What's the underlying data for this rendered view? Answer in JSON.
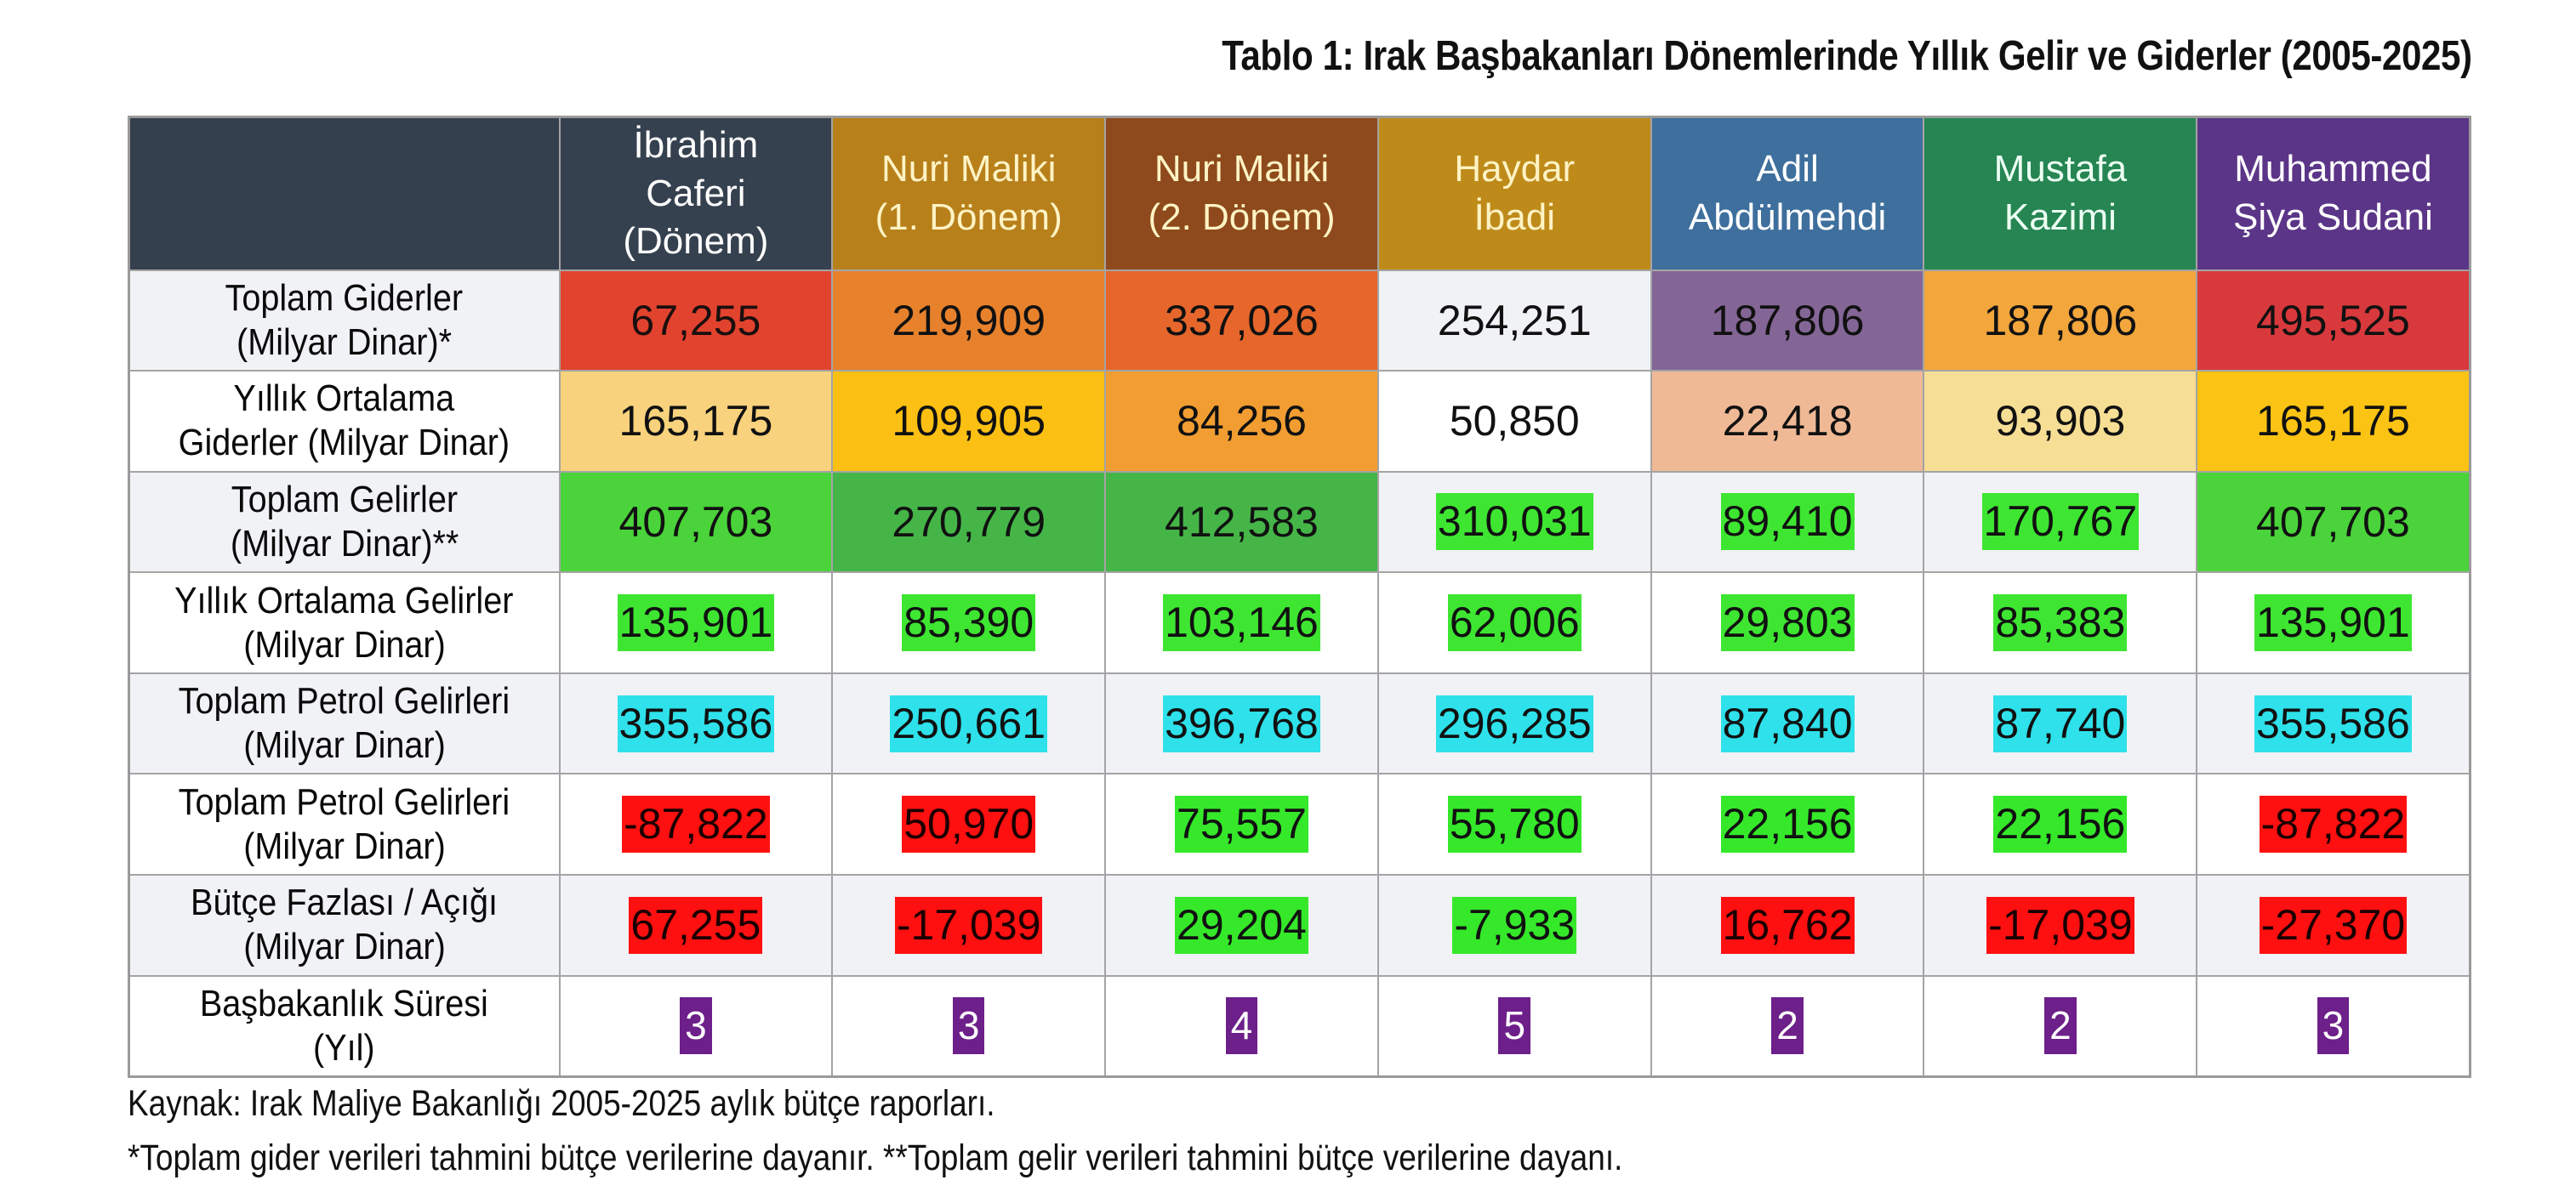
{
  "title": "Tablo 1: Irak Başbakanları Dönemlerinde Yıllık Gelir ve Giderler (2005-2025)",
  "table": {
    "corner_color": "#35404e",
    "columns": [
      {
        "label": "İbrahim Caferi (Dönem)",
        "lines": [
          "İbrahim",
          "Caferi",
          "(Dönem)"
        ],
        "bg": "#36414f",
        "fg": "#ffffff"
      },
      {
        "label": "Nuri Maliki (1. Dönem)",
        "lines": [
          "Nuri Maliki",
          "(1. Dönem)"
        ],
        "bg": "#b7801b",
        "fg": "#fff3c4"
      },
      {
        "label": "Nuri Maliki (2. Dönem)",
        "lines": [
          "Nuri Maliki",
          "(2. Dönem)"
        ],
        "bg": "#8e4a1c",
        "fg": "#fff3c4"
      },
      {
        "label": "Haydar İbadi",
        "lines": [
          "Haydar",
          "İbadi"
        ],
        "bg": "#be8b1b",
        "fg": "#fff3c4"
      },
      {
        "label": "Adil Abdülmehdi",
        "lines": [
          "Adil",
          "Abdülmehdi"
        ],
        "bg": "#3e6f9d",
        "fg": "#ffffff"
      },
      {
        "label": "Mustafa Kazimi",
        "lines": [
          "Mustafa",
          "Kazimi"
        ],
        "bg": "#268553",
        "fg": "#ecfff2"
      },
      {
        "label": "Muhammed Şiya Sudani",
        "lines": [
          "Muhammed",
          "Şiya Sudani"
        ],
        "bg": "#5b3587",
        "fg": "#ffffff"
      }
    ],
    "rows": [
      {
        "label_lines": [
          "Toplam Giderler",
          "(Milyar Dinar)*"
        ],
        "style": "fill",
        "cells": [
          {
            "value": "67,255",
            "bg": "#e2432e",
            "fg": "#1a0f0f"
          },
          {
            "value": "219,909",
            "bg": "#e7812c",
            "fg": "#111111"
          },
          {
            "value": "337,026",
            "bg": "#e6662b",
            "fg": "#111111"
          },
          {
            "value": "254,251",
            "bg": "",
            "fg": "#111111"
          },
          {
            "value": "187,806",
            "bg": "#836696",
            "fg": "#111111"
          },
          {
            "value": "187,806",
            "bg": "#f2a63c",
            "fg": "#111111"
          },
          {
            "value": "495,525",
            "bg": "#d8393c",
            "fg": "#111111"
          }
        ]
      },
      {
        "label_lines": [
          "Yıllık Ortalama",
          "Giderler (Milyar Dinar)"
        ],
        "style": "fill",
        "cells": [
          {
            "value": "165,175",
            "bg": "#f8d27c",
            "fg": "#111111"
          },
          {
            "value": "109,905",
            "bg": "#fbc013",
            "fg": "#111111"
          },
          {
            "value": "84,256",
            "bg": "#f19d31",
            "fg": "#111111"
          },
          {
            "value": "50,850",
            "bg": "",
            "fg": "#111111"
          },
          {
            "value": "22,418",
            "bg": "#f0b996",
            "fg": "#111111"
          },
          {
            "value": "93,903",
            "bg": "#f6de95",
            "fg": "#111111"
          },
          {
            "value": "165,175",
            "bg": "#fbc313",
            "fg": "#111111"
          }
        ]
      },
      {
        "label_lines": [
          "Toplam Gelirler",
          "(Milyar Dinar)**"
        ],
        "style": "mixed",
        "cells": [
          {
            "value": "407,703",
            "bg": "#4ad33a",
            "fg": "#111111",
            "mode": "fill"
          },
          {
            "value": "270,779",
            "bg": "#45b548",
            "fg": "#111111",
            "mode": "fill"
          },
          {
            "value": "412,583",
            "bg": "#45b548",
            "fg": "#111111",
            "mode": "fill"
          },
          {
            "value": "310,031",
            "bg": "#3ee632",
            "fg": "#111111",
            "mode": "chip"
          },
          {
            "value": "89,410",
            "bg": "#3ee632",
            "fg": "#111111",
            "mode": "chip"
          },
          {
            "value": "170,767",
            "bg": "#3ee632",
            "fg": "#111111",
            "mode": "chip"
          },
          {
            "value": "407,703",
            "bg": "#4ad33a",
            "fg": "#111111",
            "mode": "fill"
          }
        ]
      },
      {
        "label_lines": [
          "Yıllık Ortalama Gelirler",
          "(Milyar Dinar)"
        ],
        "style": "chip",
        "cells": [
          {
            "value": "135,901",
            "bg": "#3ee632",
            "fg": "#111111"
          },
          {
            "value": "85,390",
            "bg": "#3ee632",
            "fg": "#111111"
          },
          {
            "value": "103,146",
            "bg": "#3ee632",
            "fg": "#111111"
          },
          {
            "value": "62,006",
            "bg": "#3ee632",
            "fg": "#111111"
          },
          {
            "value": "29,803",
            "bg": "#3ee632",
            "fg": "#111111"
          },
          {
            "value": "85,383",
            "bg": "#3ee632",
            "fg": "#111111"
          },
          {
            "value": "135,901",
            "bg": "#3ee632",
            "fg": "#111111"
          }
        ]
      },
      {
        "label_lines": [
          "Toplam Petrol Gelirleri",
          "(Milyar Dinar)"
        ],
        "style": "chip",
        "cells": [
          {
            "value": "355,586",
            "bg": "#2ee1ea",
            "fg": "#111111"
          },
          {
            "value": "250,661",
            "bg": "#2ee1ea",
            "fg": "#111111"
          },
          {
            "value": "396,768",
            "bg": "#2ee1ea",
            "fg": "#111111"
          },
          {
            "value": "296,285",
            "bg": "#2ee1ea",
            "fg": "#111111"
          },
          {
            "value": "87,840",
            "bg": "#2ee1ea",
            "fg": "#111111"
          },
          {
            "value": "87,740",
            "bg": "#2ee1ea",
            "fg": "#111111"
          },
          {
            "value": "355,586",
            "bg": "#2ee1ea",
            "fg": "#111111"
          }
        ]
      },
      {
        "label_lines": [
          "Toplam Petrol Gelirleri",
          "(Milyar Dinar)"
        ],
        "style": "chip",
        "cells": [
          {
            "value": "-87,822",
            "bg": "#ff1010",
            "fg": "#1a0000"
          },
          {
            "value": "50,970",
            "bg": "#ff1010",
            "fg": "#1a0000"
          },
          {
            "value": "75,557",
            "bg": "#35e82a",
            "fg": "#111111"
          },
          {
            "value": "55,780",
            "bg": "#35e82a",
            "fg": "#111111"
          },
          {
            "value": "22,156",
            "bg": "#35e82a",
            "fg": "#111111"
          },
          {
            "value": "22,156",
            "bg": "#35e82a",
            "fg": "#111111"
          },
          {
            "value": "-87,822",
            "bg": "#ff1010",
            "fg": "#1a0000"
          }
        ]
      },
      {
        "label_lines": [
          "Bütçe Fazlası / Açığı",
          "(Milyar Dinar)"
        ],
        "style": "chip",
        "cells": [
          {
            "value": "67,255",
            "bg": "#ff1010",
            "fg": "#1a0000"
          },
          {
            "value": "-17,039",
            "bg": "#ff1010",
            "fg": "#1a0000"
          },
          {
            "value": "29,204",
            "bg": "#35e82a",
            "fg": "#111111"
          },
          {
            "value": "-7,933",
            "bg": "#35e82a",
            "fg": "#111111"
          },
          {
            "value": "16,762",
            "bg": "#ff1010",
            "fg": "#1a0000"
          },
          {
            "value": "-17,039",
            "bg": "#ff1010",
            "fg": "#1a0000"
          },
          {
            "value": "-27,370",
            "bg": "#ff1010",
            "fg": "#1a0000"
          }
        ]
      },
      {
        "label_lines": [
          "Başbakanlık Süresi",
          "(Yıl)"
        ],
        "style": "chip",
        "cells": [
          {
            "value": "3",
            "bg": "#6d1f8a",
            "fg": "#ffffff"
          },
          {
            "value": "3",
            "bg": "#6d1f8a",
            "fg": "#ffffff"
          },
          {
            "value": "4",
            "bg": "#6d1f8a",
            "fg": "#ffffff"
          },
          {
            "value": "5",
            "bg": "#6d1f8a",
            "fg": "#ffffff"
          },
          {
            "value": "2",
            "bg": "#6d1f8a",
            "fg": "#ffffff"
          },
          {
            "value": "2",
            "bg": "#6d1f8a",
            "fg": "#ffffff"
          },
          {
            "value": "3",
            "bg": "#6d1f8a",
            "fg": "#ffffff"
          }
        ]
      }
    ]
  },
  "footnotes": {
    "source": "Kaynak: Irak Maliye Bakanlığı 2005-2025 aylık bütçe raporları.",
    "note": "*Toplam gider verileri tahmini bütçe verilerine dayanır. **Toplam gelir verileri tahmini bütçe verilerine dayanı."
  },
  "chart_data": {
    "type": "table",
    "title": "Tablo 1: Irak Başbakanları Dönemlerinde Yıllık Gelir ve Giderler (2005-2025)",
    "columns": [
      "İbrahim Caferi (Dönem)",
      "Nuri Maliki (1. Dönem)",
      "Nuri Maliki (2. Dönem)",
      "Haydar İbadi",
      "Adil Abdülmehdi",
      "Mustafa Kazimi",
      "Muhammed Şiya Sudani"
    ],
    "rows": [
      {
        "name": "Toplam Giderler (Milyar Dinar)*",
        "values": [
          67255,
          219909,
          337026,
          254251,
          187806,
          187806,
          495525
        ]
      },
      {
        "name": "Yıllık Ortalama Giderler (Milyar Dinar)",
        "values": [
          165175,
          109905,
          84256,
          50850,
          22418,
          93903,
          165175
        ]
      },
      {
        "name": "Toplam Gelirler (Milyar Dinar)**",
        "values": [
          407703,
          270779,
          412583,
          310031,
          89410,
          170767,
          407703
        ]
      },
      {
        "name": "Yıllık Ortalama Gelirler (Milyar Dinar)",
        "values": [
          135901,
          85390,
          103146,
          62006,
          29803,
          85383,
          135901
        ]
      },
      {
        "name": "Toplam Petrol Gelirleri (Milyar Dinar)",
        "values": [
          355586,
          250661,
          396768,
          296285,
          87840,
          87740,
          355586
        ]
      },
      {
        "name": "Toplam Petrol Gelirleri (Milyar Dinar)",
        "values": [
          -87822,
          50970,
          75557,
          55780,
          22156,
          22156,
          -87822
        ]
      },
      {
        "name": "Bütçe Fazlası / Açığı (Milyar Dinar)",
        "values": [
          67255,
          -17039,
          29204,
          -7933,
          16762,
          -17039,
          -27370
        ]
      },
      {
        "name": "Başbakanlık Süresi (Yıl)",
        "values": [
          3,
          3,
          4,
          5,
          2,
          2,
          3
        ]
      }
    ],
    "source": "Kaynak: Irak Maliye Bakanlığı 2005-2025 aylık bütçe raporları."
  }
}
